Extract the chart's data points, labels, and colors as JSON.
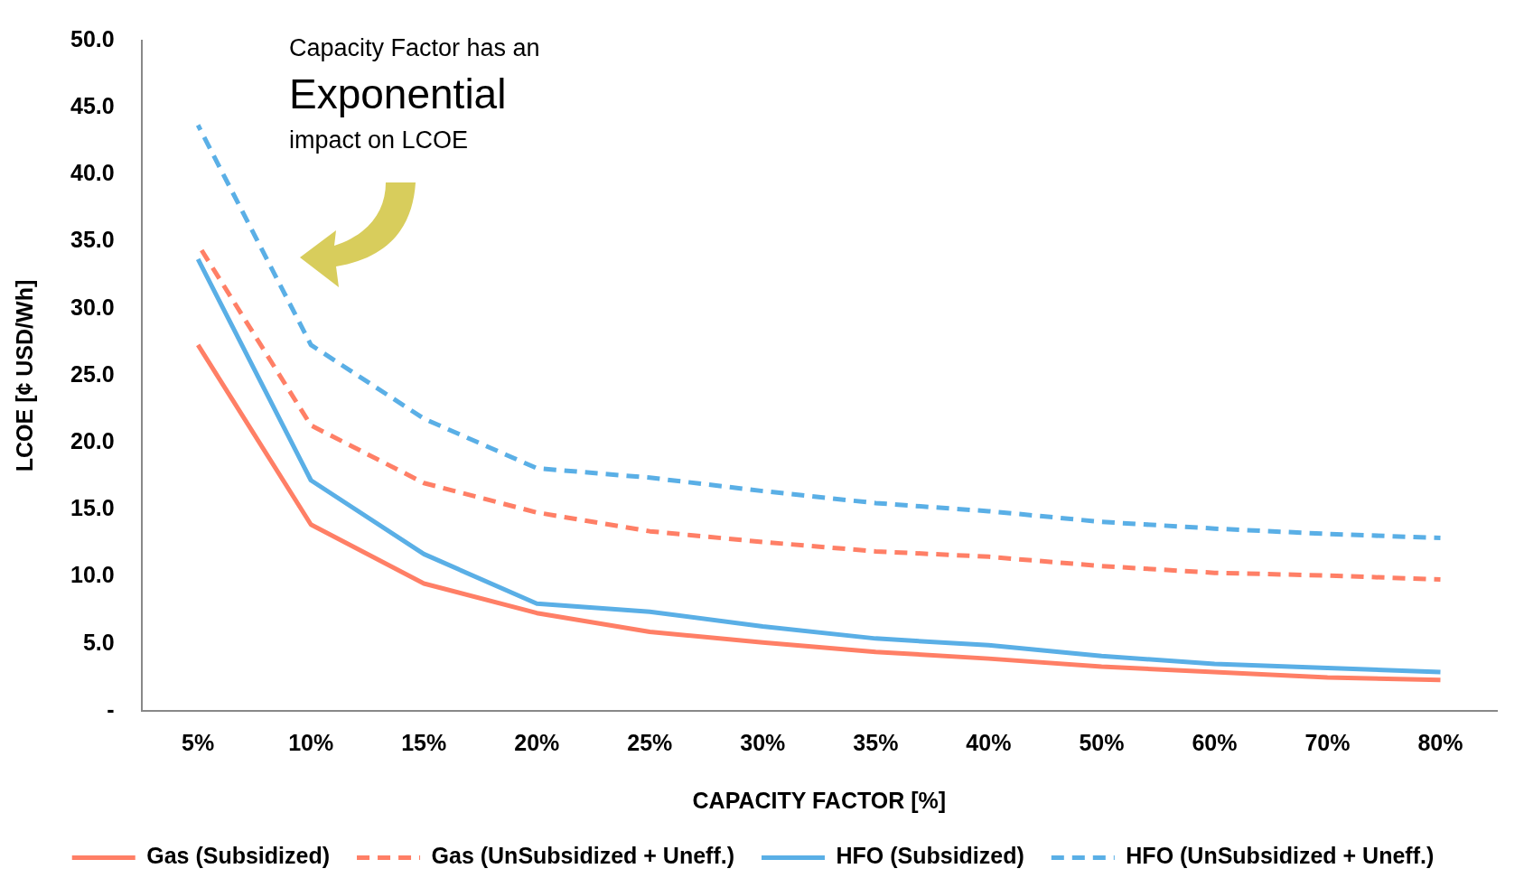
{
  "chart_data": {
    "type": "line",
    "xlabel": "CAPACITY FACTOR [%]",
    "ylabel": "LCOE [¢ USD/Wh]",
    "categories": [
      "5%",
      "10%",
      "15%",
      "20%",
      "25%",
      "30%",
      "35%",
      "40%",
      "50%",
      "60%",
      "70%",
      "80%"
    ],
    "series": [
      {
        "name": "Gas (Subsidized)",
        "color": "#ff7f66",
        "line_style": "solid",
        "values": [
          27.3,
          13.9,
          9.5,
          7.3,
          5.9,
          5.1,
          4.4,
          3.9,
          3.3,
          2.9,
          2.5,
          2.3
        ]
      },
      {
        "name": "Gas (UnSubsidized + Uneff.)",
        "color": "#ff7f66",
        "line_style": "dashed",
        "values": [
          34.8,
          21.3,
          17.0,
          14.8,
          13.4,
          12.6,
          11.9,
          11.5,
          10.8,
          10.3,
          10.1,
          9.8
        ]
      },
      {
        "name": "HFO (Subsidized)",
        "color": "#5aafe6",
        "line_style": "solid",
        "values": [
          33.7,
          17.2,
          11.7,
          8.0,
          7.4,
          6.3,
          5.4,
          4.9,
          4.1,
          3.5,
          3.2,
          2.9
        ]
      },
      {
        "name": "HFO (UnSubsidized + Uneff.)",
        "color": "#5aafe6",
        "line_style": "dashed",
        "values": [
          43.7,
          27.3,
          21.8,
          18.1,
          17.4,
          16.4,
          15.5,
          14.9,
          14.1,
          13.6,
          13.2,
          12.9
        ]
      }
    ],
    "ylim": [
      0,
      50
    ],
    "yticks": [
      {
        "value": 0,
        "label": "-"
      },
      {
        "value": 5,
        "label": "5.0"
      },
      {
        "value": 10,
        "label": "10.0"
      },
      {
        "value": 15,
        "label": "15.0"
      },
      {
        "value": 20,
        "label": "20.0"
      },
      {
        "value": 25,
        "label": "25.0"
      },
      {
        "value": 30,
        "label": "30.0"
      },
      {
        "value": 35,
        "label": "35.0"
      },
      {
        "value": 40,
        "label": "40.0"
      },
      {
        "value": 45,
        "label": "45.0"
      },
      {
        "value": 50,
        "label": "50.0"
      }
    ],
    "grid": false,
    "legend": "bottom",
    "marker": "none",
    "annotations": [
      "Capacity Factor has an",
      "Exponential",
      "impact on LCOE"
    ]
  }
}
